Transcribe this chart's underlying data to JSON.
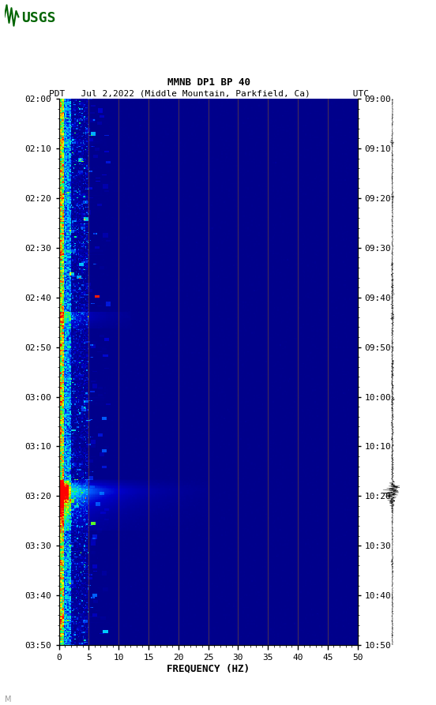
{
  "title_line1": "MMNB DP1 BP 40",
  "title_line2": "PDT   Jul 2,2022 (Middle Mountain, Parkfield, Ca)        UTC",
  "xlabel": "FREQUENCY (HZ)",
  "freq_min": 0,
  "freq_max": 50,
  "freq_ticks": [
    0,
    5,
    10,
    15,
    20,
    25,
    30,
    35,
    40,
    45,
    50
  ],
  "time_ticks_left": [
    "02:00",
    "02:10",
    "02:20",
    "02:30",
    "02:40",
    "02:50",
    "03:00",
    "03:10",
    "03:20",
    "03:30",
    "03:40",
    "03:50"
  ],
  "time_ticks_right": [
    "09:00",
    "09:10",
    "09:20",
    "09:30",
    "09:40",
    "09:50",
    "10:00",
    "10:10",
    "10:20",
    "10:30",
    "10:40",
    "10:50"
  ],
  "vert_grid_freqs": [
    5,
    10,
    15,
    20,
    25,
    30,
    35,
    40,
    45
  ],
  "background_color": "#ffffff",
  "spec_bg_color": "#000080",
  "usgs_logo_color": "#006400",
  "watermark": "M"
}
